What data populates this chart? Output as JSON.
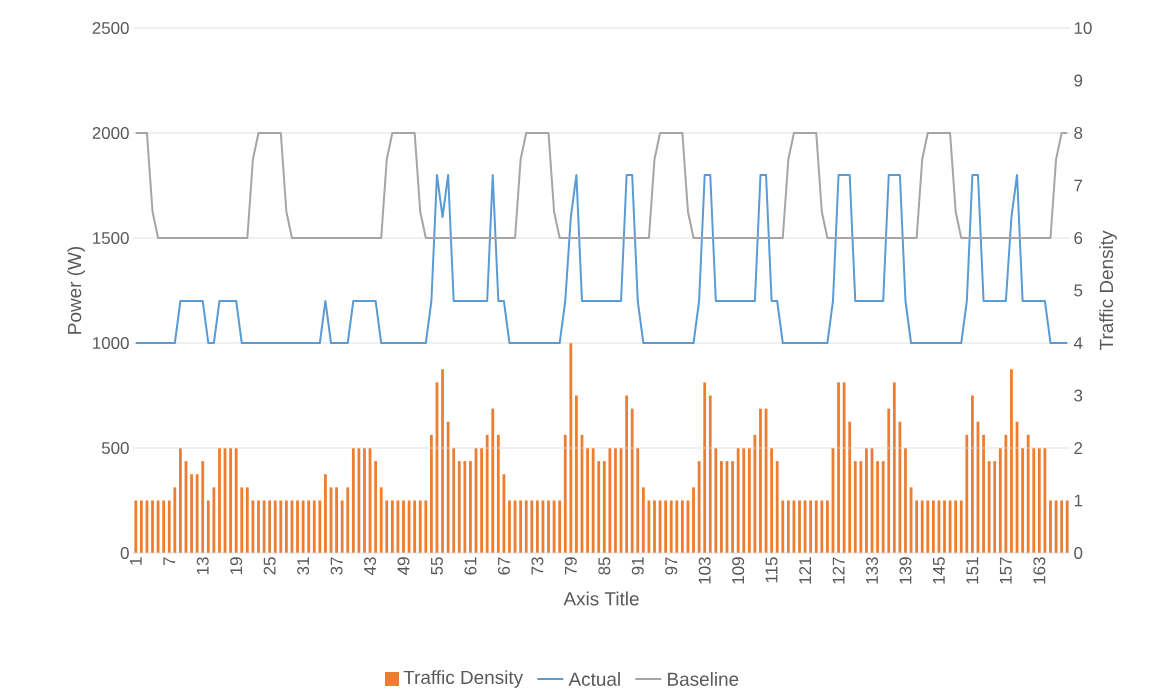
{
  "chart_data": {
    "type": "bar",
    "categories": [
      "1",
      null,
      null,
      null,
      null,
      null,
      "7",
      null,
      null,
      null,
      null,
      null,
      "13",
      null,
      null,
      null,
      null,
      null,
      "19",
      null,
      null,
      null,
      null,
      null,
      "25",
      null,
      null,
      null,
      null,
      null,
      "31",
      null,
      null,
      null,
      null,
      null,
      "37",
      null,
      null,
      null,
      null,
      null,
      "43",
      null,
      null,
      null,
      null,
      null,
      "49",
      null,
      null,
      null,
      null,
      null,
      "55",
      null,
      null,
      null,
      null,
      null,
      "61",
      null,
      null,
      null,
      null,
      null,
      "67",
      null,
      null,
      null,
      null,
      null,
      "73",
      null,
      null,
      null,
      null,
      null,
      "79",
      null,
      null,
      null,
      null,
      null,
      "85",
      null,
      null,
      null,
      null,
      null,
      "91",
      null,
      null,
      null,
      null,
      null,
      "97",
      null,
      null,
      null,
      null,
      null,
      "103",
      null,
      null,
      null,
      null,
      null,
      "109",
      null,
      null,
      null,
      null,
      null,
      "115",
      null,
      null,
      null,
      null,
      null,
      "121",
      null,
      null,
      null,
      null,
      null,
      "127",
      null,
      null,
      null,
      null,
      null,
      "133",
      null,
      null,
      null,
      null,
      null,
      "139",
      null,
      null,
      null,
      null,
      null,
      "145",
      null,
      null,
      null,
      null,
      null,
      "151",
      null,
      null,
      null,
      null,
      null,
      "157",
      null,
      null,
      null,
      null,
      null,
      "163",
      null,
      null,
      null,
      null,
      null
    ],
    "series": [
      {
        "name": "Traffic Density",
        "axis": "y2",
        "color": "#ed7d31",
        "values": [
          1,
          1,
          1,
          1,
          1,
          1,
          1,
          1.25,
          2,
          1.75,
          1.5,
          1.5,
          1.75,
          1,
          1.25,
          2,
          2,
          2,
          2,
          1.25,
          1.25,
          1,
          1,
          1,
          1,
          1,
          1,
          1,
          1,
          1,
          1,
          1,
          1,
          1,
          1.5,
          1.25,
          1.25,
          1,
          1.25,
          2,
          2,
          2,
          2,
          1.75,
          1.25,
          1,
          1,
          1,
          1,
          1,
          1,
          1,
          1,
          2.25,
          3.25,
          3.5,
          2.5,
          2,
          1.75,
          1.75,
          1.75,
          2,
          2,
          2.25,
          2.75,
          2.25,
          1.5,
          1,
          1,
          1,
          1,
          1,
          1,
          1,
          1,
          1,
          1,
          2.25,
          4,
          3,
          2.25,
          2,
          2,
          1.75,
          1.75,
          2,
          2,
          2,
          3,
          2.75,
          2,
          1.25,
          1,
          1,
          1,
          1,
          1,
          1,
          1,
          1,
          1.25,
          1.75,
          3.25,
          3,
          2,
          1.75,
          1.75,
          1.75,
          2,
          2,
          2,
          2.25,
          2.75,
          2.75,
          2,
          1.75,
          1,
          1,
          1,
          1,
          1,
          1,
          1,
          1,
          1,
          2,
          3.25,
          3.25,
          2.5,
          1.75,
          1.75,
          2,
          2,
          1.75,
          1.75,
          2.75,
          3.25,
          2.5,
          2,
          1.25,
          1,
          1,
          1,
          1,
          1,
          1,
          1,
          1,
          1,
          2.25,
          3,
          2.5,
          2.25,
          1.75,
          1.75,
          2,
          2.25,
          3.5,
          2.5,
          2,
          2.25,
          2,
          2,
          2,
          1,
          1,
          1,
          1
        ]
      },
      {
        "name": "Actual",
        "type": "line",
        "color": "#5b9bd5",
        "values": [
          1000,
          1000,
          1000,
          1000,
          1000,
          1000,
          1000,
          1000,
          1200,
          1200,
          1200,
          1200,
          1200,
          1000,
          1000,
          1200,
          1200,
          1200,
          1200,
          1000,
          1000,
          1000,
          1000,
          1000,
          1000,
          1000,
          1000,
          1000,
          1000,
          1000,
          1000,
          1000,
          1000,
          1000,
          1200,
          1000,
          1000,
          1000,
          1000,
          1200,
          1200,
          1200,
          1200,
          1200,
          1000,
          1000,
          1000,
          1000,
          1000,
          1000,
          1000,
          1000,
          1000,
          1200,
          1800,
          1600,
          1800,
          1200,
          1200,
          1200,
          1200,
          1200,
          1200,
          1200,
          1800,
          1200,
          1200,
          1000,
          1000,
          1000,
          1000,
          1000,
          1000,
          1000,
          1000,
          1000,
          1000,
          1200,
          1600,
          1800,
          1200,
          1200,
          1200,
          1200,
          1200,
          1200,
          1200,
          1200,
          1800,
          1800,
          1200,
          1000,
          1000,
          1000,
          1000,
          1000,
          1000,
          1000,
          1000,
          1000,
          1000,
          1200,
          1800,
          1800,
          1200,
          1200,
          1200,
          1200,
          1200,
          1200,
          1200,
          1200,
          1800,
          1800,
          1200,
          1200,
          1000,
          1000,
          1000,
          1000,
          1000,
          1000,
          1000,
          1000,
          1000,
          1200,
          1800,
          1800,
          1800,
          1200,
          1200,
          1200,
          1200,
          1200,
          1200,
          1800,
          1800,
          1800,
          1200,
          1000,
          1000,
          1000,
          1000,
          1000,
          1000,
          1000,
          1000,
          1000,
          1000,
          1200,
          1800,
          1800,
          1200,
          1200,
          1200,
          1200,
          1200,
          1600,
          1800,
          1200,
          1200,
          1200,
          1200,
          1200,
          1000,
          1000,
          1000,
          1000
        ]
      },
      {
        "name": "Baseline",
        "type": "line",
        "color": "#a5a5a5",
        "values": [
          2000,
          2000,
          2000,
          1625,
          1500,
          1500,
          1500,
          1500,
          1500,
          1500,
          1500,
          1500,
          1500,
          1500,
          1500,
          1500,
          1500,
          1500,
          1500,
          1500,
          1500,
          1875,
          2000,
          2000,
          2000,
          2000,
          2000,
          1625,
          1500,
          1500,
          1500,
          1500,
          1500,
          1500,
          1500,
          1500,
          1500,
          1500,
          1500,
          1500,
          1500,
          1500,
          1500,
          1500,
          1500,
          1875,
          2000,
          2000,
          2000,
          2000,
          2000,
          1625,
          1500,
          1500,
          1500,
          1500,
          1500,
          1500,
          1500,
          1500,
          1500,
          1500,
          1500,
          1500,
          1500,
          1500,
          1500,
          1500,
          1500,
          1875,
          2000,
          2000,
          2000,
          2000,
          2000,
          1625,
          1500,
          1500,
          1500,
          1500,
          1500,
          1500,
          1500,
          1500,
          1500,
          1500,
          1500,
          1500,
          1500,
          1500,
          1500,
          1500,
          1500,
          1875,
          2000,
          2000,
          2000,
          2000,
          2000,
          1625,
          1500,
          1500,
          1500,
          1500,
          1500,
          1500,
          1500,
          1500,
          1500,
          1500,
          1500,
          1500,
          1500,
          1500,
          1500,
          1500,
          1500,
          1875,
          2000,
          2000,
          2000,
          2000,
          2000,
          1625,
          1500,
          1500,
          1500,
          1500,
          1500,
          1500,
          1500,
          1500,
          1500,
          1500,
          1500,
          1500,
          1500,
          1500,
          1500,
          1500,
          1500,
          1875,
          2000,
          2000,
          2000,
          2000,
          2000,
          1625,
          1500,
          1500,
          1500,
          1500,
          1500,
          1500,
          1500,
          1500,
          1500,
          1500,
          1500,
          1500,
          1500,
          1500,
          1500,
          1500,
          1500,
          1875,
          2000,
          2000
        ]
      }
    ],
    "xlabel": "Axis Title",
    "ylabel": "Power (W)",
    "y2label": "Traffic Density",
    "ylim": [
      0,
      2500
    ],
    "yticks": [
      0,
      500,
      1000,
      1500,
      2000,
      2500
    ],
    "y2lim": [
      0,
      10
    ],
    "y2ticks": [
      0,
      1,
      2,
      3,
      4,
      5,
      6,
      7,
      8,
      9,
      10
    ],
    "grid": "y",
    "legend": "bottom"
  }
}
